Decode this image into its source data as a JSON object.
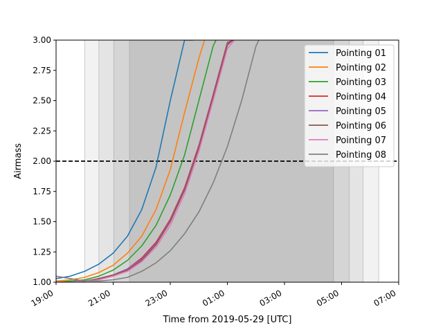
{
  "chart_data": {
    "type": "line",
    "title": "",
    "xlabel": "Time from 2019-05-29 [UTC]",
    "ylabel": "Airmass",
    "xlim": [
      19,
      31
    ],
    "ylim": [
      1.0,
      3.0
    ],
    "x_ticks": [
      {
        "hour": 19,
        "label": "19:00"
      },
      {
        "hour": 21,
        "label": "21:00"
      },
      {
        "hour": 23,
        "label": "23:00"
      },
      {
        "hour": 25,
        "label": "01:00"
      },
      {
        "hour": 27,
        "label": "03:00"
      },
      {
        "hour": 29,
        "label": "05:00"
      },
      {
        "hour": 31,
        "label": "07:00"
      }
    ],
    "y_ticks": [
      1.0,
      1.25,
      1.5,
      1.75,
      2.0,
      2.25,
      2.5,
      2.75,
      3.0
    ],
    "y_tick_labels": [
      "1.00",
      "1.25",
      "1.50",
      "1.75",
      "2.00",
      "2.25",
      "2.50",
      "2.75",
      "3.00"
    ],
    "reference_line": {
      "y": 2.0,
      "style": "dashed",
      "color": "#000000"
    },
    "twilight_bands": [
      {
        "start": 20.0,
        "end": 30.3,
        "opacity": 0.1
      },
      {
        "start": 20.5,
        "end": 29.75,
        "opacity": 0.12
      },
      {
        "start": 21.02,
        "end": 29.27,
        "opacity": 0.15
      },
      {
        "start": 21.57,
        "end": 28.72,
        "opacity": 0.2
      }
    ],
    "legend_position": "top-right",
    "series": [
      {
        "name": "Pointing 01",
        "color": "#1f77b4",
        "x": [
          19.0,
          19.5,
          20.0,
          20.5,
          21.0,
          21.5,
          22.0,
          22.5,
          23.0,
          23.3,
          23.5,
          23.75,
          23.8
        ],
        "y": [
          1.03,
          1.05,
          1.09,
          1.15,
          1.24,
          1.38,
          1.6,
          1.95,
          2.5,
          2.8,
          3.0,
          3.0,
          3.0
        ]
      },
      {
        "name": "Pointing 02",
        "color": "#ff7f0e",
        "x": [
          19.0,
          19.5,
          20.0,
          20.5,
          21.0,
          21.5,
          22.0,
          22.5,
          23.0,
          23.5,
          24.0,
          24.2
        ],
        "y": [
          1.01,
          1.02,
          1.04,
          1.08,
          1.14,
          1.24,
          1.38,
          1.6,
          1.93,
          2.4,
          2.85,
          3.0
        ]
      },
      {
        "name": "Pointing 03",
        "color": "#2ca02c",
        "x": [
          19.0,
          19.5,
          20.0,
          20.5,
          21.0,
          21.5,
          22.0,
          22.5,
          23.0,
          23.5,
          24.0,
          24.5,
          24.6
        ],
        "y": [
          1.0,
          1.01,
          1.02,
          1.05,
          1.1,
          1.18,
          1.3,
          1.47,
          1.72,
          2.05,
          2.5,
          2.95,
          3.0
        ]
      },
      {
        "name": "Pointing 04",
        "color": "#d62728",
        "x": [
          19.0,
          19.5,
          20.0,
          20.5,
          21.0,
          21.5,
          22.0,
          22.5,
          23.0,
          23.5,
          24.0,
          24.5,
          25.0,
          25.2
        ],
        "y": [
          1.0,
          1.0,
          1.01,
          1.03,
          1.06,
          1.11,
          1.2,
          1.33,
          1.52,
          1.78,
          2.13,
          2.55,
          2.98,
          3.0
        ]
      },
      {
        "name": "Pointing 05",
        "color": "#9467bd",
        "x": [
          19.0,
          19.5,
          20.0,
          20.5,
          21.0,
          21.5,
          22.0,
          22.5,
          23.0,
          23.5,
          24.0,
          24.5,
          25.0,
          25.2
        ],
        "y": [
          1.0,
          1.0,
          1.01,
          1.03,
          1.06,
          1.11,
          1.19,
          1.32,
          1.51,
          1.77,
          2.12,
          2.54,
          2.97,
          3.0
        ]
      },
      {
        "name": "Pointing 06",
        "color": "#8c564b",
        "x": [
          19.0,
          19.5,
          20.0,
          20.5,
          21.0,
          21.5,
          22.0,
          22.5,
          23.0,
          23.5,
          24.0,
          24.5,
          25.0,
          25.2
        ],
        "y": [
          1.0,
          1.0,
          1.01,
          1.03,
          1.06,
          1.1,
          1.18,
          1.31,
          1.5,
          1.76,
          2.11,
          2.53,
          2.96,
          3.0
        ]
      },
      {
        "name": "Pointing 07",
        "color": "#e377c2",
        "x": [
          19.0,
          19.5,
          20.0,
          20.5,
          21.0,
          21.5,
          22.0,
          22.5,
          23.0,
          23.5,
          24.0,
          24.5,
          25.0,
          25.25
        ],
        "y": [
          1.0,
          1.0,
          1.01,
          1.02,
          1.05,
          1.09,
          1.17,
          1.29,
          1.47,
          1.73,
          2.08,
          2.5,
          2.93,
          3.0
        ]
      },
      {
        "name": "Pointing 08",
        "color": "#7f7f7f",
        "x": [
          19.0,
          19.5,
          20.0,
          20.5,
          21.0,
          21.5,
          22.0,
          22.5,
          23.0,
          23.5,
          24.0,
          24.5,
          25.0,
          25.5,
          26.0,
          26.1
        ],
        "y": [
          1.05,
          1.03,
          1.01,
          1.01,
          1.02,
          1.04,
          1.09,
          1.16,
          1.26,
          1.4,
          1.58,
          1.82,
          2.12,
          2.5,
          2.95,
          3.0
        ]
      }
    ]
  }
}
